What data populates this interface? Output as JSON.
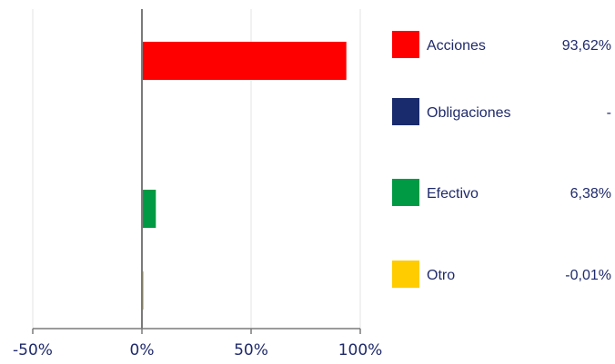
{
  "chart_data": {
    "type": "bar",
    "orientation": "horizontal",
    "xlim": [
      -50,
      100
    ],
    "x_ticks": [
      -50,
      0,
      50,
      100
    ],
    "x_tick_labels": [
      "-50%",
      "0%",
      "50%",
      "100%"
    ],
    "grid": true,
    "legend_placement": "right",
    "categories": [
      "Acciones",
      "Obligaciones",
      "Efectivo",
      "Otro"
    ],
    "values": [
      93.62,
      0,
      6.38,
      -0.01
    ],
    "value_labels": [
      "93,62%",
      "-",
      "6,38%",
      "-0,01%"
    ],
    "colors": [
      "#ff0000",
      "#1a2b6d",
      "#009a44",
      "#ffcc00"
    ]
  }
}
